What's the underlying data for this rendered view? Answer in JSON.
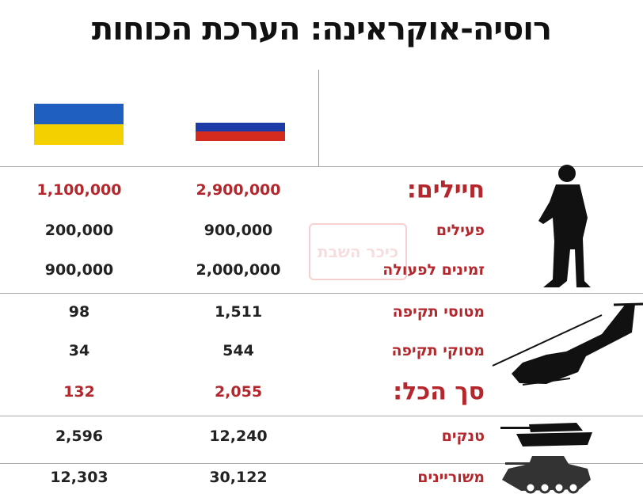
{
  "title": "רוסיה-אוקראינה: הערכת הכוחות",
  "flags": {
    "ukraine": [
      "#1f5fbf",
      "#f5d000"
    ],
    "russia": [
      "#ffffff",
      "#1c3aa6",
      "#d52b1e"
    ]
  },
  "colors": {
    "accent": "#b3272d"
  },
  "watermark": "כיכר השבת",
  "rows": [
    {
      "label": "חיילים:",
      "russia": "2,900,000",
      "ukraine": "1,100,000",
      "highlight": true
    },
    {
      "label": "פעילים",
      "russia": "900,000",
      "ukraine": "200,000",
      "highlight": false
    },
    {
      "label": "זמינים לפעולה",
      "russia": "2,000,000",
      "ukraine": "900,000",
      "highlight": false
    },
    {
      "label": "מטוסי תקיפה",
      "russia": "1,511",
      "ukraine": "98",
      "highlight": false
    },
    {
      "label": "מסוקי תקיפה",
      "russia": "544",
      "ukraine": "34",
      "highlight": false
    },
    {
      "label": "סך הכל:",
      "russia": "2,055",
      "ukraine": "132",
      "highlight": true
    },
    {
      "label": "טנקים",
      "russia": "12,240",
      "ukraine": "2,596",
      "highlight": false
    },
    {
      "label": "משוריינים",
      "russia": "30,122",
      "ukraine": "12,303",
      "highlight": false
    }
  ],
  "icons": [
    "soldier-icon",
    "helicopter-icon",
    "tank-icon",
    "armored-vehicle-icon"
  ]
}
